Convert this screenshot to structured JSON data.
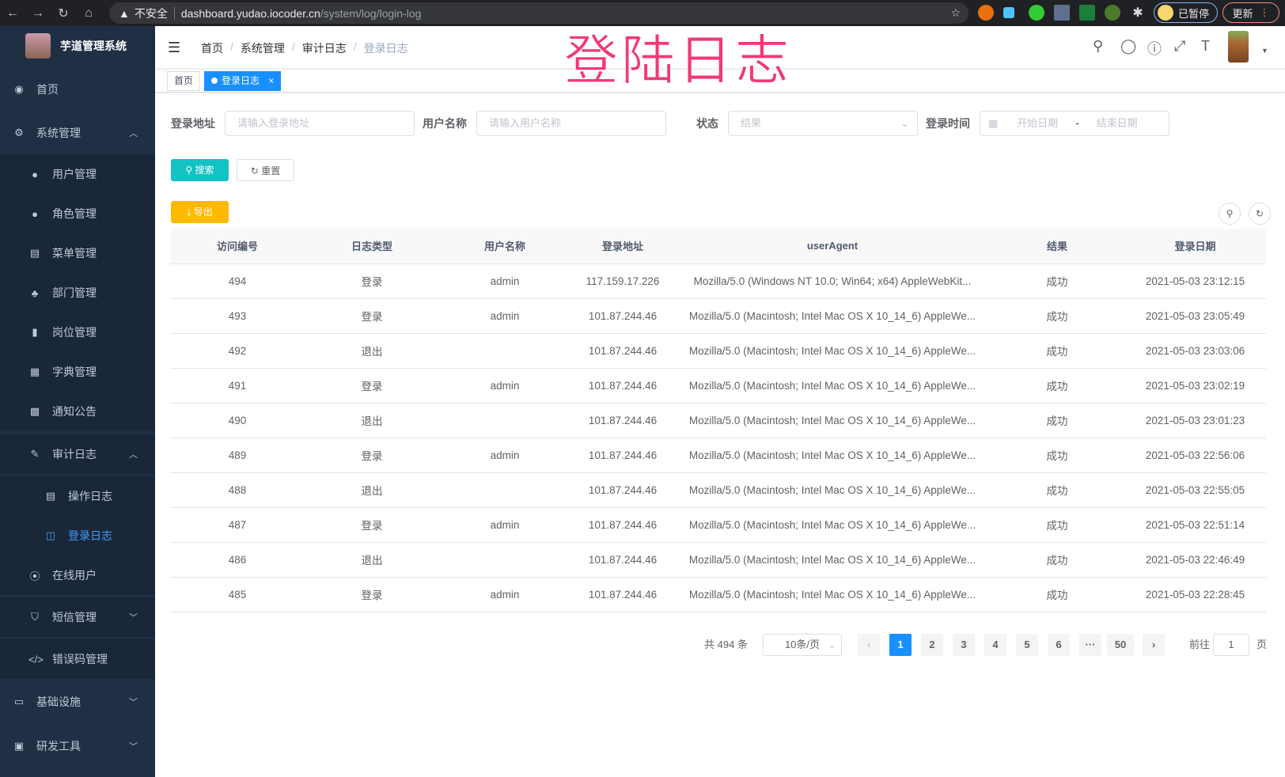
{
  "browser": {
    "back": "←",
    "forward": "→",
    "reload": "↻",
    "home": "⌂",
    "security": "不安全",
    "url_host": "dashboard.yudao.iocoder.cn",
    "url_path": "/system/log/login-log",
    "paused": "已暂停",
    "update": "更新"
  },
  "overlay_title": "登陆日志",
  "app": {
    "name": "芋道管理系统"
  },
  "sidebar": {
    "items": [
      {
        "label": "首页",
        "icon": "dashboard-icon"
      },
      {
        "label": "系统管理",
        "icon": "gear-icon"
      },
      {
        "label": "用户管理",
        "icon": "user-icon"
      },
      {
        "label": "角色管理",
        "icon": "peoples-icon"
      },
      {
        "label": "菜单管理",
        "icon": "tree-table-icon"
      },
      {
        "label": "部门管理",
        "icon": "tree-icon"
      },
      {
        "label": "岗位管理",
        "icon": "post-icon"
      },
      {
        "label": "字典管理",
        "icon": "dict-icon"
      },
      {
        "label": "通知公告",
        "icon": "message-icon"
      },
      {
        "label": "审计日志",
        "icon": "log-icon"
      },
      {
        "label": "操作日志",
        "icon": "form-icon"
      },
      {
        "label": "登录日志",
        "icon": "logininfor-icon"
      },
      {
        "label": "在线用户",
        "icon": "online-icon"
      },
      {
        "label": "短信管理",
        "icon": "shield-icon"
      },
      {
        "label": "错误码管理",
        "icon": "code-icon"
      },
      {
        "label": "基础设施",
        "icon": "monitor-icon"
      },
      {
        "label": "研发工具",
        "icon": "tool-icon"
      }
    ]
  },
  "breadcrumb": [
    "首页",
    "系统管理",
    "审计日志",
    "登录日志"
  ],
  "tags": [
    {
      "label": "首页"
    },
    {
      "label": "登录日志",
      "close": "×"
    }
  ],
  "filters": {
    "ip": {
      "label": "登录地址",
      "placeholder": "请输入登录地址"
    },
    "username": {
      "label": "用户名称",
      "placeholder": "请输入用户名称"
    },
    "status": {
      "label": "状态",
      "placeholder": "结果"
    },
    "time": {
      "label": "登录时间",
      "start": "开始日期",
      "sep": "-",
      "end": "结束日期"
    }
  },
  "buttons": {
    "search": "搜索",
    "reset": "重置",
    "export": "导出"
  },
  "colors": {
    "primary": "#1890ff",
    "search": "#13c2c2",
    "export": "#ffba00",
    "sidebar": "#1f2f44"
  },
  "table": {
    "columns": [
      "访问编号",
      "日志类型",
      "用户名称",
      "登录地址",
      "userAgent",
      "结果",
      "登录日期"
    ],
    "rows": [
      [
        "494",
        "登录",
        "admin",
        "117.159.17.226",
        "Mozilla/5.0 (Windows NT 10.0; Win64; x64) AppleWebKit...",
        "成功",
        "2021-05-03 23:12:15"
      ],
      [
        "493",
        "登录",
        "admin",
        "101.87.244.46",
        "Mozilla/5.0 (Macintosh; Intel Mac OS X 10_14_6) AppleWe...",
        "成功",
        "2021-05-03 23:05:49"
      ],
      [
        "492",
        "退出",
        "",
        "101.87.244.46",
        "Mozilla/5.0 (Macintosh; Intel Mac OS X 10_14_6) AppleWe...",
        "成功",
        "2021-05-03 23:03:06"
      ],
      [
        "491",
        "登录",
        "admin",
        "101.87.244.46",
        "Mozilla/5.0 (Macintosh; Intel Mac OS X 10_14_6) AppleWe...",
        "成功",
        "2021-05-03 23:02:19"
      ],
      [
        "490",
        "退出",
        "",
        "101.87.244.46",
        "Mozilla/5.0 (Macintosh; Intel Mac OS X 10_14_6) AppleWe...",
        "成功",
        "2021-05-03 23:01:23"
      ],
      [
        "489",
        "登录",
        "admin",
        "101.87.244.46",
        "Mozilla/5.0 (Macintosh; Intel Mac OS X 10_14_6) AppleWe...",
        "成功",
        "2021-05-03 22:56:06"
      ],
      [
        "488",
        "退出",
        "",
        "101.87.244.46",
        "Mozilla/5.0 (Macintosh; Intel Mac OS X 10_14_6) AppleWe...",
        "成功",
        "2021-05-03 22:55:05"
      ],
      [
        "487",
        "登录",
        "admin",
        "101.87.244.46",
        "Mozilla/5.0 (Macintosh; Intel Mac OS X 10_14_6) AppleWe...",
        "成功",
        "2021-05-03 22:51:14"
      ],
      [
        "486",
        "退出",
        "",
        "101.87.244.46",
        "Mozilla/5.0 (Macintosh; Intel Mac OS X 10_14_6) AppleWe...",
        "成功",
        "2021-05-03 22:46:49"
      ],
      [
        "485",
        "登录",
        "admin",
        "101.87.244.46",
        "Mozilla/5.0 (Macintosh; Intel Mac OS X 10_14_6) AppleWe...",
        "成功",
        "2021-05-03 22:28:45"
      ]
    ]
  },
  "pagination": {
    "total": "共 494 条",
    "page_size": "10条/页",
    "prev": "‹",
    "next": "›",
    "pages": [
      "1",
      "2",
      "3",
      "4",
      "5",
      "6",
      "···",
      "50"
    ],
    "current": "1",
    "goto_label": "前往",
    "goto_value": "1",
    "goto_suffix": "页"
  }
}
